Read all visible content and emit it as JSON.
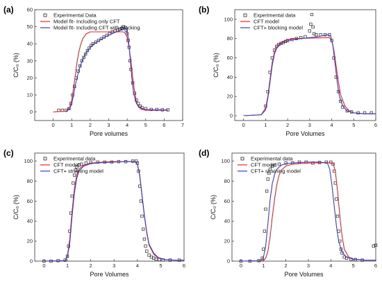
{
  "colors": {
    "experimental": "#222222",
    "cft": "#e8232a",
    "second": "#3a3acc"
  },
  "chart_data": [
    {
      "panel": "(a)",
      "type": "line",
      "xlabel": "Pore volumes",
      "ylabel": "C/C₀ (%)",
      "xlim": [
        -1,
        7
      ],
      "ylim": [
        -5,
        60
      ],
      "xticks": [
        0,
        1,
        2,
        3,
        4,
        5,
        6,
        7
      ],
      "yticks": [
        0,
        10,
        20,
        30,
        40,
        50,
        60
      ],
      "legend": "top-left",
      "series": [
        {
          "name": "Experimental Data",
          "kind": "scatter",
          "color": "#222222",
          "x": [
            0.3,
            0.5,
            0.7,
            0.85,
            0.95,
            1.05,
            1.15,
            1.25,
            1.35,
            1.45,
            1.55,
            1.65,
            1.75,
            1.85,
            1.95,
            2.05,
            2.15,
            2.3,
            2.45,
            2.6,
            2.75,
            2.9,
            3.05,
            3.2,
            3.35,
            3.5,
            3.6,
            3.7,
            3.8,
            3.9,
            3.95,
            4.0,
            4.05,
            4.1,
            4.15,
            4.2,
            4.3,
            4.4,
            4.5,
            4.6,
            4.7,
            4.8,
            5.0,
            5.3,
            5.6,
            5.9,
            6.2
          ],
          "y": [
            1,
            1,
            1,
            2,
            5,
            10,
            15,
            20,
            24,
            27,
            30,
            32,
            34,
            36,
            37.5,
            39,
            40,
            41,
            42,
            43,
            44,
            45,
            46,
            47,
            47.5,
            48,
            48.5,
            49,
            50,
            49.5,
            48,
            46,
            42,
            38,
            30,
            25,
            17,
            11,
            7,
            5,
            3.5,
            2.5,
            2,
            1.5,
            1.5,
            1.3,
            1.3
          ]
        },
        {
          "name": "Model fit- Including only CFT",
          "kind": "line",
          "color": "#e8232a",
          "x": [
            0,
            0.7,
            0.9,
            1.0,
            1.1,
            1.2,
            1.3,
            1.4,
            1.5,
            1.6,
            1.8,
            2.0,
            3.8,
            3.9,
            4.0,
            4.1,
            4.2,
            4.3,
            4.4,
            4.5,
            4.6,
            4.8,
            5.0,
            5.5,
            6.2
          ],
          "y": [
            0,
            0.5,
            3,
            7,
            14,
            22,
            30,
            36,
            40,
            43,
            46,
            47,
            47,
            46,
            44,
            38,
            30,
            20,
            12,
            6,
            3,
            1.5,
            1,
            1,
            1
          ]
        },
        {
          "name": "Model fit- Including CFT with blocking",
          "kind": "line",
          "color": "#3a3acc",
          "x": [
            0.7,
            0.9,
            1.0,
            1.1,
            1.2,
            1.4,
            1.6,
            1.8,
            2.0,
            2.2,
            2.5,
            2.8,
            3.1,
            3.4,
            3.7,
            3.95,
            4.05,
            4.15,
            4.25,
            4.35,
            4.5,
            4.7,
            5.0,
            5.5,
            6.2
          ],
          "y": [
            0.5,
            2,
            5,
            10,
            16,
            25,
            31,
            35,
            38,
            40,
            42,
            44,
            45.5,
            47,
            48,
            49,
            44,
            33,
            20,
            11,
            5,
            2.5,
            1.5,
            1.2,
            1.2
          ]
        }
      ]
    },
    {
      "panel": "(b)",
      "type": "line",
      "xlabel": "Pore Volumes",
      "ylabel": "C/C₀ (%)",
      "xlim": [
        -0.4,
        6
      ],
      "ylim": [
        -5,
        110
      ],
      "xticks": [
        0,
        1,
        2,
        3,
        4,
        5,
        6
      ],
      "yticks": [
        0,
        20,
        40,
        60,
        80,
        100
      ],
      "legend": "top-left",
      "series": [
        {
          "name": "Experimental data",
          "kind": "scatter",
          "color": "#222222",
          "x": [
            1.0,
            1.1,
            1.2,
            1.3,
            1.4,
            1.5,
            1.6,
            1.7,
            1.8,
            1.9,
            2.0,
            2.2,
            2.4,
            2.6,
            2.8,
            3.0,
            3.05,
            3.1,
            3.15,
            3.2,
            3.3,
            3.5,
            3.7,
            3.9,
            4.0,
            4.1,
            4.2,
            4.3,
            4.4,
            4.5,
            4.7,
            4.9,
            5.2,
            5.5,
            5.8
          ],
          "y": [
            10,
            25,
            45,
            60,
            68,
            72,
            74,
            75,
            76,
            77,
            78,
            79,
            80,
            81,
            82,
            88,
            95,
            105,
            92,
            85,
            84,
            84,
            84,
            84,
            78,
            60,
            40,
            25,
            15,
            9,
            5,
            4,
            3,
            3,
            3
          ]
        },
        {
          "name": "CFT model",
          "kind": "line",
          "color": "#e8232a",
          "x": [
            0,
            0.8,
            1.0,
            1.1,
            1.2,
            1.3,
            1.4,
            1.5,
            1.7,
            1.9,
            2.2,
            3.9,
            4.0,
            4.1,
            4.2,
            4.3,
            4.4,
            4.6,
            4.8,
            5.0,
            5.5,
            6.0
          ],
          "y": [
            0,
            1,
            8,
            20,
            38,
            55,
            66,
            72,
            76,
            78,
            80,
            81,
            78,
            68,
            52,
            36,
            22,
            10,
            5,
            3,
            2,
            2
          ]
        },
        {
          "name": "CFT+ blocking model",
          "kind": "line",
          "color": "#3a3acc",
          "x": [
            0,
            0.8,
            1.0,
            1.1,
            1.2,
            1.3,
            1.4,
            1.5,
            1.7,
            1.9,
            2.2,
            2.6,
            3.0,
            3.4,
            3.8,
            3.95,
            4.05,
            4.15,
            4.25,
            4.35,
            4.5,
            4.7,
            5.0,
            5.5,
            6.0
          ],
          "y": [
            0,
            1,
            6,
            18,
            35,
            52,
            64,
            70,
            75,
            77,
            79,
            80,
            81,
            82,
            84,
            83,
            74,
            55,
            35,
            20,
            10,
            5,
            3,
            2,
            2
          ]
        }
      ]
    },
    {
      "panel": "(c)",
      "type": "line",
      "xlabel": "Pore Volumes",
      "ylabel": "C/C₀ (%)",
      "xlim": [
        -0.4,
        6
      ],
      "ylim": [
        0,
        108
      ],
      "xticks": [
        0,
        1,
        2,
        3,
        4,
        5,
        6
      ],
      "yticks": [
        0,
        20,
        40,
        60,
        80,
        100
      ],
      "legend": "top-left",
      "series": [
        {
          "name": "Experimental data",
          "kind": "scatter",
          "color": "#222222",
          "x": [
            0.0,
            0.3,
            0.6,
            0.9,
            1.0,
            1.05,
            1.1,
            1.15,
            1.2,
            1.25,
            1.3,
            1.35,
            1.4,
            1.5,
            1.6,
            1.8,
            2.0,
            2.3,
            2.6,
            2.9,
            3.2,
            3.5,
            3.8,
            3.95,
            4.0,
            4.05,
            4.1,
            4.15,
            4.2,
            4.25,
            4.3,
            4.35,
            4.4,
            4.5,
            4.6,
            4.7,
            4.8,
            4.95,
            5.1,
            5.4,
            5.8
          ],
          "y": [
            0,
            0,
            0.5,
            1,
            5,
            15,
            30,
            48,
            65,
            78,
            86,
            91,
            94,
            96,
            97,
            98,
            98.5,
            99,
            99,
            99,
            99.5,
            99.5,
            100,
            100,
            98,
            90,
            75,
            60,
            45,
            32,
            22,
            15,
            10,
            6,
            4,
            3,
            2,
            1.5,
            1.2,
            1,
            1
          ]
        },
        {
          "name": "CFT model",
          "kind": "line",
          "color": "#e8232a",
          "x": [
            0,
            0.9,
            1.0,
            1.1,
            1.2,
            1.3,
            1.4,
            1.5,
            1.7,
            2.0,
            2.5,
            3.0,
            3.5,
            3.9,
            4.0,
            4.1,
            4.2,
            4.3,
            4.4,
            4.5,
            4.7,
            4.9,
            5.2,
            5.6,
            6.0
          ],
          "y": [
            0,
            0.5,
            5,
            22,
            50,
            72,
            86,
            92,
            96,
            98,
            99,
            99.5,
            99.5,
            99.5,
            97,
            85,
            65,
            45,
            28,
            16,
            7,
            3,
            1.5,
            1,
            1
          ]
        },
        {
          "name": "CFT+ straining model",
          "kind": "line",
          "color": "#3a3acc",
          "x": [
            0,
            0.9,
            1.0,
            1.1,
            1.2,
            1.3,
            1.4,
            1.5,
            1.7,
            2.0,
            2.5,
            3.0,
            3.5,
            3.9,
            4.0,
            4.1,
            4.2,
            4.3,
            4.4,
            4.5,
            4.7,
            4.9,
            5.2,
            5.6,
            6.0
          ],
          "y": [
            0,
            0.5,
            4,
            18,
            45,
            68,
            83,
            90,
            95,
            97.5,
            98.5,
            99,
            99.5,
            99.5,
            97,
            86,
            66,
            46,
            29,
            17,
            8,
            3.5,
            1.5,
            1,
            1
          ]
        }
      ]
    },
    {
      "panel": "(d)",
      "type": "line",
      "xlabel": "Pore Volumes",
      "ylabel": "C/C₀ (%)",
      "xlim": [
        -0.4,
        6
      ],
      "ylim": [
        0,
        108
      ],
      "xticks": [
        0,
        1,
        2,
        3,
        4,
        5,
        6
      ],
      "yticks": [
        0,
        20,
        40,
        60,
        80,
        100
      ],
      "legend": "top-left",
      "series": [
        {
          "name": "Experimental data",
          "kind": "scatter",
          "color": "#222222",
          "x": [
            0.0,
            0.4,
            0.8,
            0.95,
            1.0,
            1.05,
            1.1,
            1.15,
            1.2,
            1.25,
            1.3,
            1.4,
            1.5,
            1.7,
            2.0,
            2.3,
            2.6,
            2.9,
            3.2,
            3.5,
            3.8,
            4.0,
            4.1,
            4.15,
            4.2,
            4.25,
            4.3,
            4.35,
            4.4,
            4.45,
            4.5,
            4.6,
            4.7,
            4.9,
            5.1,
            5.4,
            5.9,
            6.0
          ],
          "y": [
            0,
            0,
            0.5,
            3,
            12,
            30,
            52,
            70,
            82,
            88,
            92,
            95,
            96,
            97,
            98,
            98,
            99,
            99,
            98,
            98.5,
            99,
            99,
            97,
            90,
            78,
            62,
            45,
            30,
            20,
            12,
            8,
            4,
            3,
            2,
            1.5,
            1,
            15,
            16
          ]
        },
        {
          "name": "CFT model",
          "kind": "line",
          "color": "#e8232a",
          "x": [
            0,
            1.0,
            1.1,
            1.2,
            1.3,
            1.4,
            1.5,
            1.6,
            1.7,
            1.8,
            2.0,
            2.3,
            3.0,
            3.8,
            4.1,
            4.2,
            4.3,
            4.4,
            4.5,
            4.6,
            4.8,
            5.0,
            5.5,
            6.0
          ],
          "y": [
            0,
            0.5,
            3,
            10,
            25,
            45,
            63,
            77,
            86,
            91,
            95,
            97,
            98,
            98.5,
            98,
            90,
            70,
            45,
            25,
            12,
            4,
            2,
            1,
            1
          ]
        },
        {
          "name": "CFT+ straining model",
          "kind": "line",
          "color": "#3a3acc",
          "x": [
            0,
            0.9,
            1.0,
            1.1,
            1.2,
            1.3,
            1.4,
            1.5,
            1.6,
            1.8,
            2.0,
            2.5,
            3.0,
            3.5,
            3.85,
            3.95,
            4.05,
            4.15,
            4.25,
            4.35,
            4.5,
            4.7,
            5.0,
            5.5,
            6.0
          ],
          "y": [
            0,
            0.5,
            4,
            15,
            38,
            62,
            78,
            87,
            92,
            96,
            97.5,
            98.5,
            99,
            99,
            98,
            92,
            76,
            55,
            35,
            20,
            9,
            4,
            2,
            1,
            1
          ]
        }
      ]
    }
  ]
}
